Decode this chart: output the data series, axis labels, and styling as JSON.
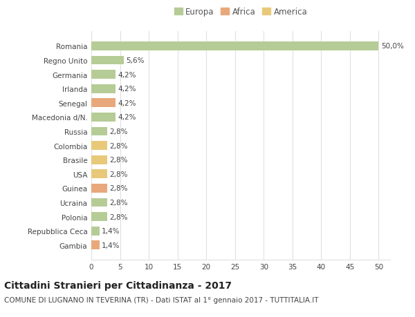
{
  "categories": [
    "Romania",
    "Regno Unito",
    "Germania",
    "Irlanda",
    "Senegal",
    "Macedonia d/N.",
    "Russia",
    "Colombia",
    "Brasile",
    "USA",
    "Guinea",
    "Ucraina",
    "Polonia",
    "Repubblica Ceca",
    "Gambia"
  ],
  "values": [
    50.0,
    5.6,
    4.2,
    4.2,
    4.2,
    4.2,
    2.8,
    2.8,
    2.8,
    2.8,
    2.8,
    2.8,
    2.8,
    1.4,
    1.4
  ],
  "labels": [
    "50,0%",
    "5,6%",
    "4,2%",
    "4,2%",
    "4,2%",
    "4,2%",
    "2,8%",
    "2,8%",
    "2,8%",
    "2,8%",
    "2,8%",
    "2,8%",
    "2,8%",
    "1,4%",
    "1,4%"
  ],
  "colors": [
    "#b5cc96",
    "#b5cc96",
    "#b5cc96",
    "#b5cc96",
    "#e8a87c",
    "#b5cc96",
    "#b5cc96",
    "#e8c97a",
    "#e8c97a",
    "#e8c97a",
    "#e8a87c",
    "#b5cc96",
    "#b5cc96",
    "#b5cc96",
    "#e8a87c"
  ],
  "legend_labels": [
    "Europa",
    "Africa",
    "America"
  ],
  "legend_colors": [
    "#b5cc96",
    "#e8a87c",
    "#e8c97a"
  ],
  "title": "Cittadini Stranieri per Cittadinanza - 2017",
  "subtitle": "COMUNE DI LUGNANO IN TEVERINA (TR) - Dati ISTAT al 1° gennaio 2017 - TUTTITALIA.IT",
  "xlim": [
    0,
    52
  ],
  "xticks": [
    0,
    5,
    10,
    15,
    20,
    25,
    30,
    35,
    40,
    45,
    50
  ],
  "background_color": "#ffffff",
  "grid_color": "#e0e0e0",
  "bar_height": 0.62,
  "title_fontsize": 10,
  "subtitle_fontsize": 7.5,
  "tick_fontsize": 7.5,
  "label_fontsize": 7.5,
  "legend_fontsize": 8.5
}
